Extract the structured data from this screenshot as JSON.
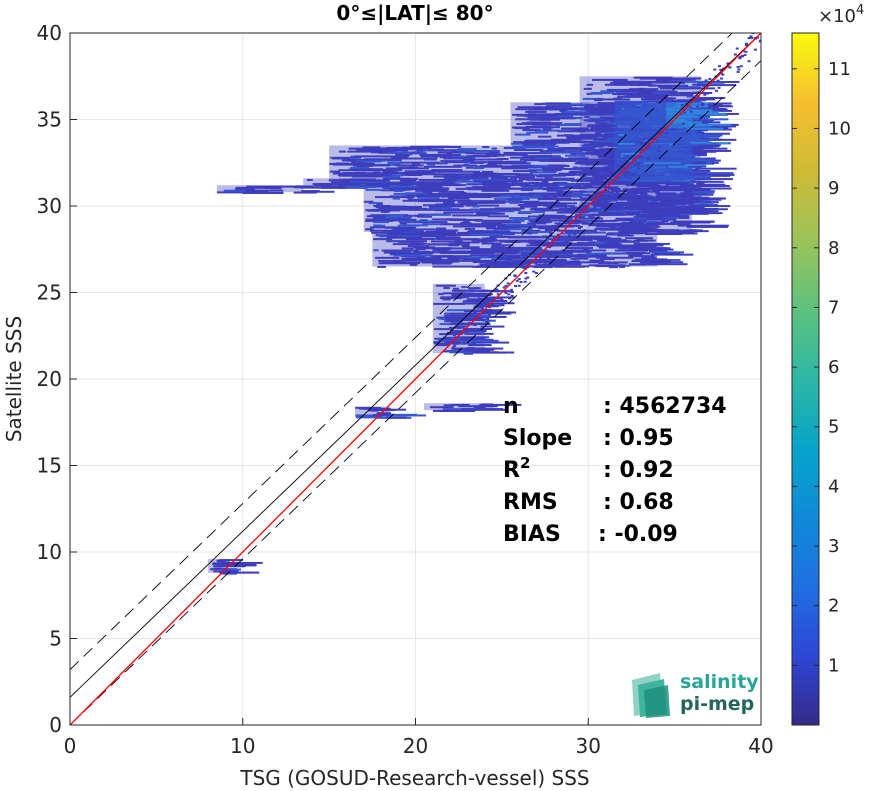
{
  "chart_data": {
    "type": "heatmap",
    "title": "0°≤|LAT|≤ 80°",
    "xlabel": "TSG (GOSUD-Research-vessel) SSS",
    "ylabel": "Satellite SSS",
    "xlim": [
      0,
      40
    ],
    "ylim": [
      0,
      40
    ],
    "xticks": [
      "0",
      "10",
      "20",
      "30",
      "40"
    ],
    "yticks": [
      "0",
      "5",
      "10",
      "15",
      "20",
      "25",
      "30",
      "35",
      "40"
    ],
    "grid": true,
    "colorbar": {
      "exponent_label": "×10",
      "exponent_power": "4",
      "ticks": [
        "1",
        "2",
        "3",
        "4",
        "5",
        "6",
        "7",
        "8",
        "9",
        "10",
        "11"
      ],
      "max": 11.6,
      "colormap": "parula"
    },
    "lines": [
      {
        "name": "identity",
        "color": "#000000",
        "style": "solid",
        "x": [
          0,
          40
        ],
        "y": [
          1.6,
          40
        ]
      },
      {
        "name": "upper bound",
        "color": "#000000",
        "style": "dashed",
        "x": [
          0,
          40
        ],
        "y": [
          3.2,
          41.6
        ]
      },
      {
        "name": "lower bound",
        "color": "#000000",
        "style": "dashed",
        "x": [
          0,
          40
        ],
        "y": [
          0,
          38.4
        ]
      },
      {
        "name": "regression fit",
        "color": "#ff0000",
        "style": "solid",
        "x": [
          0,
          40
        ],
        "y": [
          0,
          40
        ]
      }
    ],
    "density_regions": [
      {
        "x": [
          29.5,
          36.5
        ],
        "y": [
          29.5,
          37.5
        ],
        "level": 1
      },
      {
        "x": [
          25.5,
          36.5
        ],
        "y": [
          33.5,
          36
        ],
        "level": 1
      },
      {
        "x": [
          15,
          36
        ],
        "y": [
          31.5,
          33.5
        ],
        "level": 1
      },
      {
        "x": [
          17,
          36
        ],
        "y": [
          28.5,
          31.5
        ],
        "level": 1
      },
      {
        "x": [
          17.5,
          34
        ],
        "y": [
          26.5,
          28.5
        ],
        "level": 1
      },
      {
        "x": [
          31.5,
          36
        ],
        "y": [
          31.5,
          36
        ],
        "level": 2
      },
      {
        "x": [
          34.5,
          36
        ],
        "y": [
          34.5,
          36
        ],
        "level": 3
      },
      {
        "x": [
          8.5,
          13.5
        ],
        "y": [
          30.8,
          31.2
        ],
        "level": 1
      },
      {
        "x": [
          13.5,
          18.5
        ],
        "y": [
          31.1,
          31.6
        ],
        "level": 1
      },
      {
        "x": [
          16.5,
          18.5
        ],
        "y": [
          17.8,
          18.4
        ],
        "level": 1
      },
      {
        "x": [
          20.5,
          24.5
        ],
        "y": [
          18.2,
          18.6
        ],
        "level": 1
      },
      {
        "x": [
          8,
          8.8
        ],
        "y": [
          8.8,
          9.6
        ],
        "level": 1
      },
      {
        "x": [
          21,
          24
        ],
        "y": [
          21.5,
          25.5
        ],
        "level": 1
      }
    ]
  },
  "stats": [
    {
      "label": "n",
      "value": ": 4562734"
    },
    {
      "label": "Slope",
      "value": ": 0.95"
    },
    {
      "label": "R",
      "sup": "2",
      "value": ": 0.92"
    },
    {
      "label": "RMS",
      "value": ": 0.68"
    },
    {
      "label": "BIAS",
      "value": ": -0.09"
    }
  ],
  "logo": {
    "line1": "salinity",
    "line2": "pi-mep"
  }
}
